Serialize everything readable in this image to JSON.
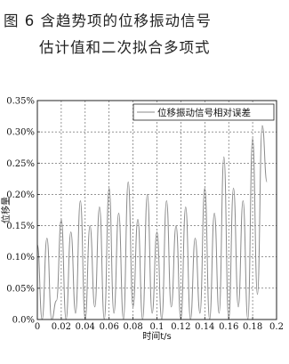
{
  "caption": {
    "line1": "图 6   含趋势项的位移振动信号",
    "line2": "估计值和二次拟合多项式"
  },
  "chart_data": {
    "type": "line",
    "xlabel": "时间t/s",
    "ylabel": "位移量",
    "xlim": [
      0,
      0.2
    ],
    "ylim": [
      0,
      0.0035
    ],
    "x_ticks": [
      0,
      0.02,
      0.04,
      0.06,
      0.08,
      0.1,
      0.12,
      0.14,
      0.16,
      0.18,
      0.2
    ],
    "x_tick_labels": [
      "0",
      "0.02",
      "0.04",
      "0.06",
      "0.08",
      "0.1",
      "0.12",
      "0.14",
      "0.16",
      "0.18",
      "0.2"
    ],
    "y_ticks": [
      0,
      0.0005,
      0.001,
      0.0015,
      0.002,
      0.0025,
      0.003,
      0.0035
    ],
    "y_tick_labels": [
      "0.0%",
      "0.05%",
      "0.10%",
      "0.15%",
      "0.20%",
      "0.25%",
      "0.30%",
      "0.35%"
    ],
    "grid": true,
    "legend": "top-right",
    "series": [
      {
        "name": "位移振动信号相对误差",
        "color": "#8a8a8a",
        "x": [
          0,
          0.004,
          0.008,
          0.012,
          0.016,
          0.02,
          0.024,
          0.028,
          0.032,
          0.036,
          0.04,
          0.044,
          0.048,
          0.052,
          0.056,
          0.06,
          0.064,
          0.068,
          0.072,
          0.076,
          0.08,
          0.084,
          0.088,
          0.092,
          0.096,
          0.1,
          0.104,
          0.108,
          0.112,
          0.116,
          0.12,
          0.124,
          0.128,
          0.132,
          0.136,
          0.14,
          0.144,
          0.148,
          0.152,
          0.156,
          0.16,
          0.164,
          0.168,
          0.172,
          0.176,
          0.18,
          0.184,
          0.188,
          0.192
        ],
        "y": [
          0.0012,
          0.0,
          0.0013,
          0.0,
          0.0003,
          0.0016,
          0.0,
          0.0014,
          0.0001,
          0.0019,
          0.0,
          0.0015,
          0.0002,
          0.0018,
          0.0,
          0.0021,
          0.0001,
          0.0017,
          0.0,
          0.0022,
          0.0002,
          0.0016,
          0.0,
          0.002,
          0.0001,
          0.0014,
          0.0,
          0.0019,
          0.0002,
          0.0015,
          0.0,
          0.0018,
          0.0,
          0.0013,
          0.0001,
          0.0021,
          0.0,
          0.0017,
          0.0001,
          0.0026,
          0.0,
          0.0021,
          0.0002,
          0.0019,
          0.0,
          0.0029,
          0.0004,
          0.0031,
          0.0022
        ]
      }
    ]
  }
}
